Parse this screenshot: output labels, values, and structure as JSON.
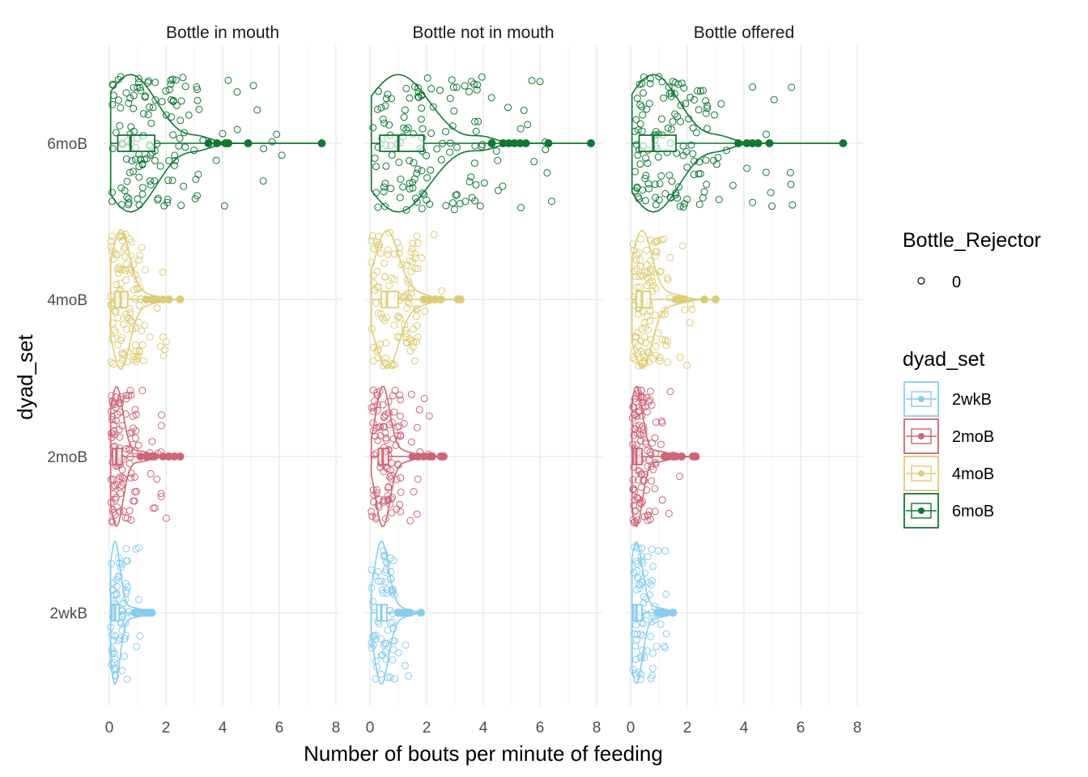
{
  "chart_data": {
    "type": "violin-boxplot-jitter",
    "xlabel": "Number of bouts per minute of feeding",
    "ylabel": "dyad_set",
    "xlim": [
      -0.2,
      8.2
    ],
    "xticks": [
      0,
      2,
      4,
      6,
      8
    ],
    "grid": true,
    "legend_position": "right",
    "categories": [
      "2wkB",
      "2moB",
      "4moB",
      "6moB"
    ],
    "facets": [
      "Bottle in mouth",
      "Bottle not in mouth",
      "Bottle offered"
    ],
    "colors": {
      "2wkB": "#88CCEE",
      "2moB": "#CC6677",
      "4moB": "#DDCC77",
      "6moB": "#117733"
    },
    "legends": {
      "shape": {
        "title": "Bottle_Rejector",
        "items": [
          "0"
        ]
      },
      "color": {
        "title": "dyad_set",
        "items": [
          "2wkB",
          "2moB",
          "4moB",
          "6moB"
        ]
      }
    },
    "series": [
      {
        "facet": "Bottle in mouth",
        "groups": [
          {
            "name": "2wkB",
            "min": 0.05,
            "q1": 0.1,
            "median": 0.2,
            "q3": 0.35,
            "whisker_high": 0.7,
            "outliers": [
              0.9,
              1.0,
              1.1,
              1.2,
              1.3,
              1.4,
              1.5
            ],
            "max": 1.5
          },
          {
            "name": "2moB",
            "min": 0.05,
            "q1": 0.12,
            "median": 0.25,
            "q3": 0.45,
            "whisker_high": 1.0,
            "outliers": [
              1.1,
              1.3,
              1.5,
              1.6,
              1.9,
              2.1,
              2.3,
              2.5
            ],
            "max": 2.5
          },
          {
            "name": "4moB",
            "min": 0.05,
            "q1": 0.2,
            "median": 0.4,
            "q3": 0.65,
            "whisker_high": 1.2,
            "outliers": [
              1.3,
              1.5,
              1.7,
              1.9,
              2.1,
              2.5
            ],
            "max": 2.5
          },
          {
            "name": "6moB",
            "min": 0.05,
            "q1": 0.3,
            "median": 0.75,
            "q3": 1.6,
            "whisker_high": 3.2,
            "outliers": [
              3.5,
              3.8,
              4.1,
              4.2,
              4.9,
              7.5
            ],
            "max": 7.5
          }
        ]
      },
      {
        "facet": "Bottle not in mouth",
        "groups": [
          {
            "name": "2wkB",
            "min": 0.05,
            "q1": 0.25,
            "median": 0.4,
            "q3": 0.6,
            "whisker_high": 0.9,
            "outliers": [
              1.0,
              1.1,
              1.2,
              1.3,
              1.4,
              1.8
            ],
            "max": 1.8
          },
          {
            "name": "2moB",
            "min": 0.05,
            "q1": 0.3,
            "median": 0.45,
            "q3": 0.65,
            "whisker_high": 1.1,
            "outliers": [
              1.5,
              1.7,
              1.9,
              2.1,
              2.2,
              2.5,
              2.6
            ],
            "max": 2.6
          },
          {
            "name": "4moB",
            "min": 0.05,
            "q1": 0.4,
            "median": 0.6,
            "q3": 1.0,
            "whisker_high": 1.7,
            "outliers": [
              1.9,
              2.1,
              2.3,
              2.5,
              3.1,
              3.2
            ],
            "max": 3.2
          },
          {
            "name": "6moB",
            "min": 0.05,
            "q1": 0.35,
            "median": 1.0,
            "q3": 1.9,
            "whisker_high": 4.0,
            "outliers": [
              4.3,
              4.7,
              4.9,
              5.1,
              5.3,
              5.5,
              6.3,
              7.8
            ],
            "max": 7.8
          }
        ]
      },
      {
        "facet": "Bottle offered",
        "groups": [
          {
            "name": "2wkB",
            "min": 0.05,
            "q1": 0.1,
            "median": 0.2,
            "q3": 0.4,
            "whisker_high": 0.8,
            "outliers": [
              0.95,
              1.05,
              1.15,
              1.25,
              1.5
            ],
            "max": 1.5
          },
          {
            "name": "2moB",
            "min": 0.05,
            "q1": 0.1,
            "median": 0.2,
            "q3": 0.4,
            "whisker_high": 0.9,
            "outliers": [
              1.2,
              1.35,
              1.5,
              1.6,
              1.8,
              2.2,
              2.3
            ],
            "max": 2.3
          },
          {
            "name": "4moB",
            "min": 0.05,
            "q1": 0.2,
            "median": 0.4,
            "q3": 0.7,
            "whisker_high": 1.4,
            "outliers": [
              1.6,
              1.7,
              1.8,
              1.9,
              2.6,
              3.0
            ],
            "max": 3.0
          },
          {
            "name": "6moB",
            "min": 0.05,
            "q1": 0.3,
            "median": 0.8,
            "q3": 1.6,
            "whisker_high": 3.2,
            "outliers": [
              3.8,
              4.1,
              4.3,
              4.5,
              4.9,
              7.5
            ],
            "max": 7.5
          }
        ]
      }
    ]
  }
}
